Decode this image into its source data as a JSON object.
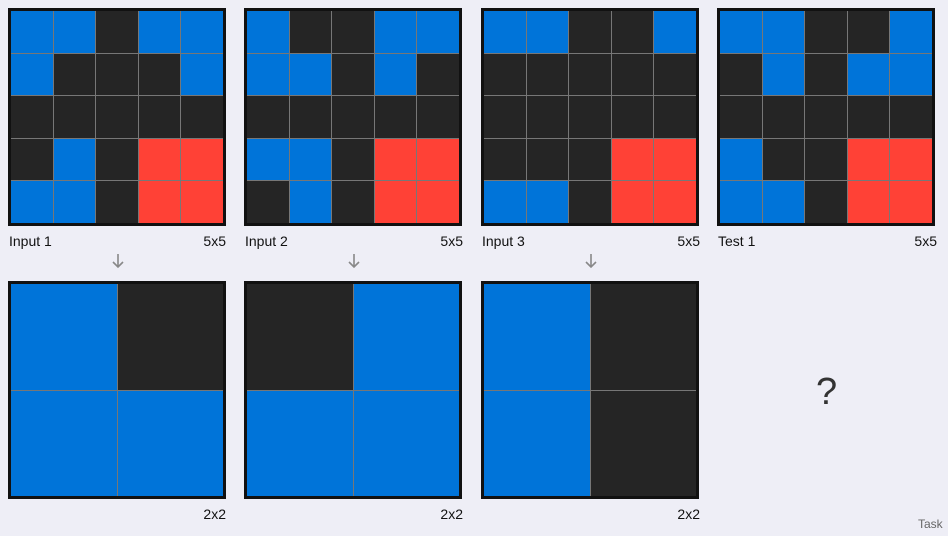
{
  "palette": {
    "0": "#252525",
    "1": "#0074d9",
    "2": "#ff4136"
  },
  "pairs": [
    {
      "input_label": "Input 1",
      "input_size": "5x5",
      "input_grid": [
        [
          1,
          1,
          0,
          1,
          1
        ],
        [
          1,
          0,
          0,
          0,
          1
        ],
        [
          0,
          0,
          0,
          0,
          0
        ],
        [
          0,
          1,
          0,
          2,
          2
        ],
        [
          1,
          1,
          0,
          2,
          2
        ]
      ],
      "output_size": "2x2",
      "output_grid": [
        [
          1,
          0
        ],
        [
          1,
          1
        ]
      ]
    },
    {
      "input_label": "Input 2",
      "input_size": "5x5",
      "input_grid": [
        [
          1,
          0,
          0,
          1,
          1
        ],
        [
          1,
          1,
          0,
          1,
          0
        ],
        [
          0,
          0,
          0,
          0,
          0
        ],
        [
          1,
          1,
          0,
          2,
          2
        ],
        [
          0,
          1,
          0,
          2,
          2
        ]
      ],
      "output_size": "2x2",
      "output_grid": [
        [
          0,
          1
        ],
        [
          1,
          1
        ]
      ]
    },
    {
      "input_label": "Input 3",
      "input_size": "5x5",
      "input_grid": [
        [
          1,
          1,
          0,
          0,
          1
        ],
        [
          0,
          0,
          0,
          0,
          0
        ],
        [
          0,
          0,
          0,
          0,
          0
        ],
        [
          0,
          0,
          0,
          2,
          2
        ],
        [
          1,
          1,
          0,
          2,
          2
        ]
      ],
      "output_size": "2x2",
      "output_grid": [
        [
          1,
          0
        ],
        [
          1,
          0
        ]
      ]
    }
  ],
  "test": {
    "label": "Test 1",
    "size": "5x5",
    "grid": [
      [
        1,
        1,
        0,
        0,
        1
      ],
      [
        0,
        1,
        0,
        1,
        1
      ],
      [
        0,
        0,
        0,
        0,
        0
      ],
      [
        1,
        0,
        0,
        2,
        2
      ],
      [
        1,
        1,
        0,
        2,
        2
      ]
    ],
    "output_placeholder": "?"
  },
  "footer_text": "Task"
}
